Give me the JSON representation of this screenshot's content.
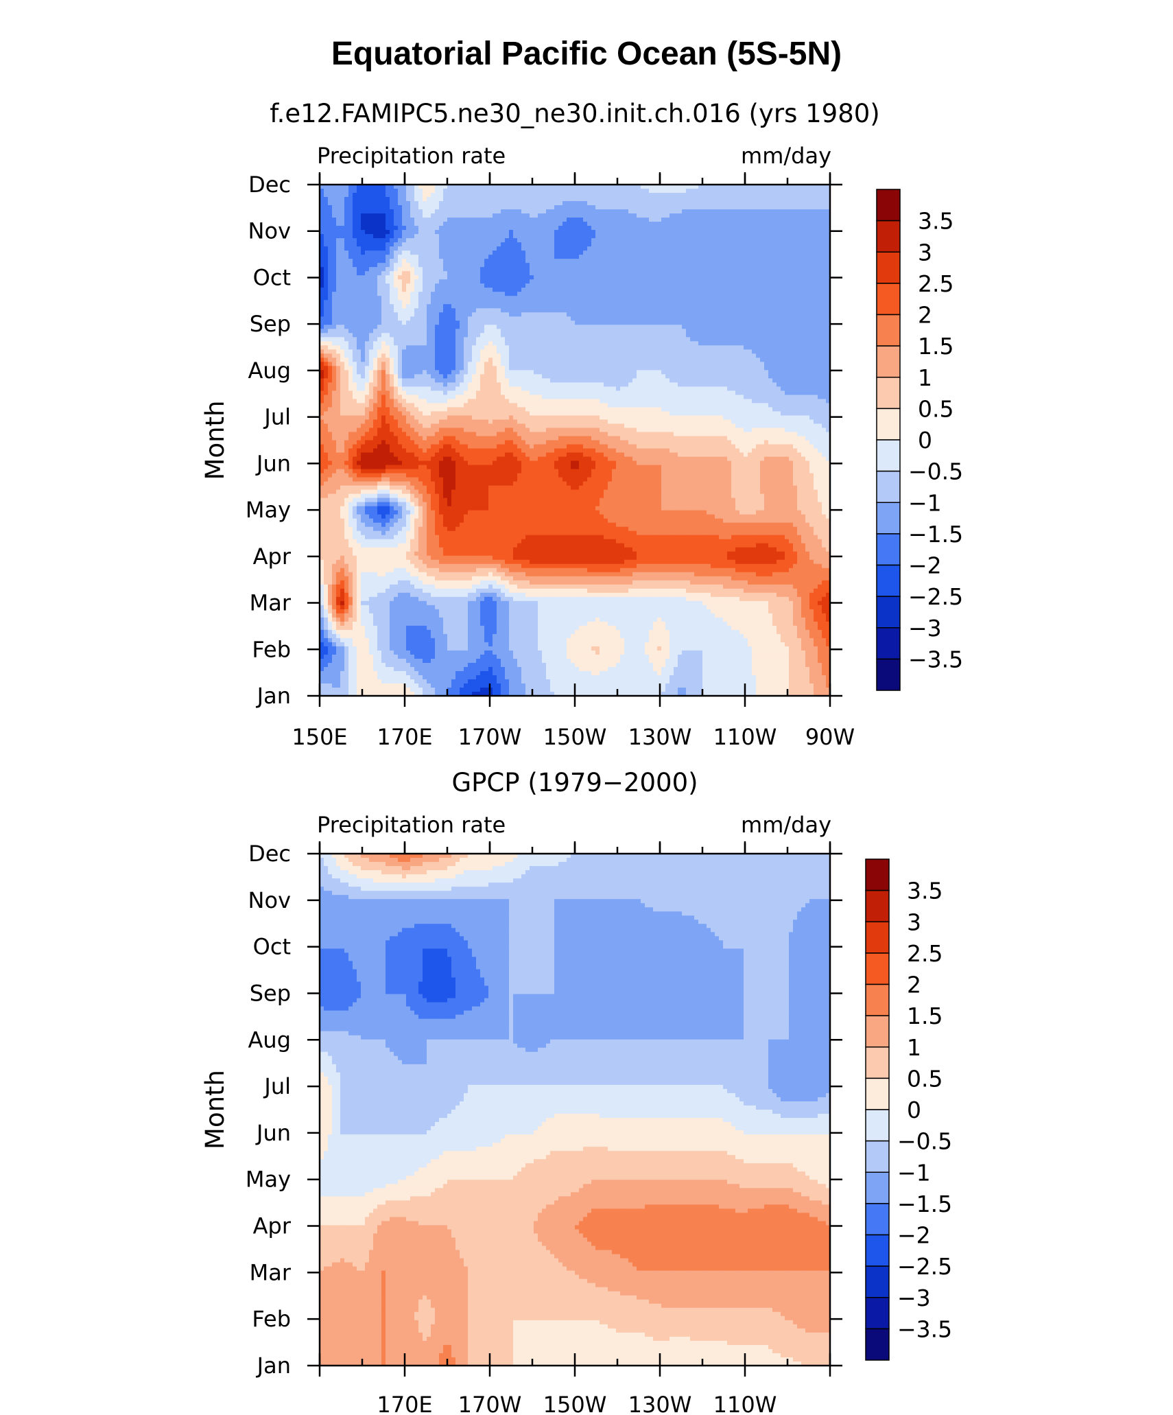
{
  "title": "Equatorial Pacific Ocean (5S-5N)",
  "colors": [
    "#0a0a7a",
    "#0a1aa6",
    "#0b33c8",
    "#1e55ea",
    "#4478f4",
    "#7ea4f6",
    "#b3caf8",
    "#dce9fb",
    "#fdebdc",
    "#fccaae",
    "#f9a783",
    "#f7814f",
    "#f45a22",
    "#e03a0d",
    "#c11f06",
    "#8a0505"
  ],
  "chart_data": [
    {
      "type": "heatmap",
      "title": "f.e12.FAMIPC5.ne30_ne30.init.ch.016 (yrs 1980)",
      "variable_label": "Precipitation rate",
      "units_label": "mm/day",
      "xlabel": "",
      "ylabel": "Month",
      "x_tick_labels": [
        "150E",
        "170E",
        "170W",
        "150W",
        "130W",
        "110W",
        "90W"
      ],
      "y_tick_labels": [
        "Jan",
        "Feb",
        "Mar",
        "Apr",
        "May",
        "Jun",
        "Jul",
        "Aug",
        "Sep",
        "Oct",
        "Nov",
        "Dec"
      ],
      "colorbar_labels": [
        "3.5",
        "3",
        "2.5",
        "2",
        "1.5",
        "1",
        "0.5",
        "0",
        "−0.5",
        "−1",
        "−1.5",
        "−2",
        "−2.5",
        "−3",
        "−3.5"
      ],
      "x": [
        150,
        155,
        160,
        165,
        170,
        175,
        180,
        185,
        190,
        195,
        200,
        205,
        210,
        215,
        220,
        225,
        230,
        235,
        240,
        245,
        250,
        255,
        260,
        265,
        270
      ],
      "y": [
        1,
        2,
        3,
        4,
        5,
        6,
        7,
        8,
        9,
        10,
        11,
        12
      ],
      "values": [
        [
          -0.5,
          -1.0,
          0.5,
          0.3,
          0.5,
          -0.5,
          -1.5,
          -2.5,
          -2.8,
          -1.5,
          -0.8,
          -0.5,
          -0.5,
          -0.5,
          -0.5,
          -0.5,
          -0.5,
          -1.2,
          -0.5,
          -0.3,
          -0.3,
          0.3,
          0.5,
          0.8,
          1.5
        ],
        [
          -2.5,
          -1.2,
          0.5,
          -0.8,
          -1.5,
          -2.0,
          -1.0,
          -1.0,
          -1.5,
          -1.0,
          -0.6,
          -0.3,
          0.3,
          0.6,
          0.2,
          -0.3,
          0.6,
          -0.5,
          -0.5,
          -0.3,
          -0.1,
          0.3,
          0.5,
          1.2,
          2.0
        ],
        [
          -0.8,
          3.3,
          -0.5,
          -0.8,
          -1.5,
          -1.0,
          -0.8,
          -1.0,
          -2.0,
          -0.8,
          -0.5,
          -0.5,
          -0.5,
          -0.3,
          -0.3,
          -0.3,
          -0.3,
          -0.3,
          0.0,
          0.2,
          0.3,
          0.5,
          0.8,
          2.0,
          3.0
        ],
        [
          0.5,
          1.0,
          0.3,
          0.5,
          0.5,
          1.5,
          2.0,
          2.0,
          2.0,
          2.5,
          3.0,
          3.0,
          3.0,
          3.0,
          3.0,
          2.5,
          2.5,
          2.5,
          2.5,
          2.5,
          3.0,
          3.0,
          2.5,
          1.5,
          1.0
        ],
        [
          0.5,
          0.5,
          -1.5,
          -2.5,
          -1.0,
          1.5,
          3.0,
          2.5,
          2.5,
          2.0,
          2.0,
          2.0,
          2.0,
          2.0,
          1.5,
          1.5,
          1.5,
          1.5,
          1.5,
          1.2,
          0.8,
          1.0,
          1.2,
          0.8,
          0.3
        ],
        [
          2.5,
          1.5,
          3.5,
          3.5,
          3.0,
          2.5,
          3.5,
          2.5,
          2.5,
          3.0,
          2.0,
          2.5,
          3.2,
          2.5,
          2.0,
          1.5,
          1.5,
          1.2,
          1.2,
          1.2,
          0.6,
          1.2,
          1.2,
          0.5,
          0.0
        ],
        [
          1.5,
          1.0,
          1.0,
          2.5,
          1.5,
          0.5,
          1.0,
          1.0,
          0.8,
          1.0,
          0.5,
          0.5,
          0.5,
          0.5,
          0.2,
          0.1,
          0.1,
          0.0,
          0.0,
          0.0,
          -0.3,
          -0.3,
          -0.5,
          -0.5,
          -0.8
        ],
        [
          3.5,
          1.0,
          -1.0,
          1.5,
          -1.5,
          -1.0,
          -2.0,
          -0.5,
          1.0,
          -0.5,
          -0.5,
          -0.8,
          -0.8,
          -0.8,
          -1.0,
          -0.5,
          -0.5,
          -0.8,
          -0.8,
          -0.8,
          -0.8,
          -1.0,
          -1.5,
          -1.5,
          -1.5
        ],
        [
          -2.0,
          -1.0,
          -1.5,
          -1.0,
          -0.5,
          -1.0,
          -2.0,
          -1.0,
          -0.5,
          -0.8,
          -0.8,
          -0.8,
          -1.0,
          -1.0,
          -1.0,
          -1.0,
          -1.0,
          -1.0,
          -1.2,
          -1.2,
          -1.2,
          -1.2,
          -1.5,
          -1.5,
          -1.5
        ],
        [
          -2.8,
          -1.0,
          -1.5,
          -0.8,
          1.0,
          -0.8,
          -1.0,
          -1.2,
          -1.8,
          -2.0,
          -1.5,
          -1.5,
          -1.2,
          -1.2,
          -1.2,
          -1.2,
          -1.2,
          -1.2,
          -1.2,
          -1.2,
          -1.5,
          -1.5,
          -1.5,
          -1.5,
          -1.5
        ],
        [
          -2.0,
          -1.5,
          -2.5,
          -2.8,
          -1.5,
          -0.8,
          -1.2,
          -1.2,
          -1.2,
          -1.5,
          -1.2,
          -1.5,
          -2.0,
          -1.5,
          -1.5,
          -1.2,
          -1.2,
          -1.5,
          -1.5,
          -1.5,
          -1.5,
          -1.5,
          -1.5,
          -1.5,
          -1.5
        ],
        [
          -1.5,
          -1.0,
          -2.5,
          -2.0,
          -1.0,
          0.5,
          -0.5,
          -0.5,
          -0.5,
          -0.5,
          -0.5,
          -0.5,
          -0.5,
          -0.5,
          -0.5,
          -0.5,
          -0.3,
          -0.3,
          -0.5,
          -0.5,
          -0.5,
          -0.5,
          -0.5,
          -0.5,
          -0.5
        ]
      ]
    },
    {
      "type": "heatmap",
      "title": "GPCP (1979−2000)",
      "variable_label": "Precipitation rate",
      "units_label": "mm/day",
      "xlabel": "",
      "ylabel": "Month",
      "x_tick_labels": [
        "170E",
        "170W",
        "150W",
        "130W",
        "110W"
      ],
      "y_tick_labels": [
        "Jan",
        "Feb",
        "Mar",
        "Apr",
        "May",
        "Jun",
        "Jul",
        "Aug",
        "Sep",
        "Oct",
        "Nov",
        "Dec"
      ],
      "colorbar_labels": [
        "3.5",
        "3",
        "2.5",
        "2",
        "1.5",
        "1",
        "0.5",
        "0",
        "−0.5",
        "−1",
        "−1.5",
        "−2",
        "−2.5",
        "−3",
        "−3.5"
      ],
      "x": [
        150,
        155,
        160,
        165,
        170,
        175,
        180,
        185,
        190,
        195,
        200,
        205,
        210,
        215,
        220,
        225,
        230,
        235,
        240,
        245,
        250,
        255,
        260,
        265,
        270
      ],
      "y": [
        1,
        2,
        3,
        4,
        5,
        6,
        7,
        8,
        9,
        10,
        11,
        12
      ],
      "values": [
        [
          1.2,
          1.5,
          1.5,
          1.5,
          1.5,
          1.2,
          1.8,
          1.0,
          0.5,
          0.5,
          0.3,
          0.2,
          0.2,
          0.2,
          0.2,
          0.2,
          0.2,
          0.0,
          0.2,
          0.2,
          0.3,
          0.3,
          0.4,
          0.5,
          0.5
        ],
        [
          1.2,
          1.5,
          1.2,
          1.5,
          1.2,
          0.8,
          1.2,
          1.0,
          0.5,
          0.5,
          0.5,
          0.5,
          0.5,
          0.5,
          0.6,
          0.6,
          0.8,
          0.8,
          0.8,
          0.8,
          0.8,
          0.8,
          1.0,
          1.2,
          1.2
        ],
        [
          1.0,
          1.2,
          1.0,
          1.5,
          1.0,
          1.2,
          1.2,
          1.0,
          0.5,
          0.8,
          0.8,
          0.9,
          1.0,
          1.2,
          1.3,
          1.5,
          1.5,
          1.5,
          1.5,
          1.5,
          1.5,
          1.5,
          1.5,
          1.5,
          1.5
        ],
        [
          0.5,
          0.5,
          0.5,
          1.2,
          1.2,
          1.0,
          1.0,
          0.8,
          0.8,
          1.0,
          1.0,
          1.2,
          1.5,
          1.8,
          1.8,
          1.8,
          2.0,
          2.0,
          2.0,
          1.8,
          1.8,
          2.0,
          2.0,
          1.8,
          1.5
        ],
        [
          -0.3,
          -0.3,
          -0.3,
          -0.2,
          0.0,
          0.2,
          0.5,
          0.5,
          0.5,
          0.5,
          0.8,
          0.8,
          0.8,
          1.0,
          1.0,
          1.0,
          1.0,
          1.0,
          1.0,
          1.0,
          0.8,
          0.8,
          0.8,
          0.5,
          0.3
        ],
        [
          0.5,
          -0.5,
          -0.5,
          -0.5,
          -0.5,
          -0.5,
          -0.3,
          -0.3,
          -0.2,
          0.0,
          0.0,
          0.3,
          0.3,
          0.3,
          0.2,
          0.2,
          0.2,
          0.2,
          0.2,
          0.2,
          0.0,
          0.0,
          0.0,
          0.0,
          0.0
        ],
        [
          0.5,
          -0.5,
          -0.8,
          -0.8,
          -0.8,
          -1.0,
          -0.8,
          -0.5,
          -0.5,
          -0.5,
          -0.5,
          -0.5,
          -0.5,
          -0.5,
          -0.5,
          -0.5,
          -0.5,
          -0.5,
          -0.5,
          -0.5,
          -0.8,
          -1.0,
          -1.5,
          -1.5,
          -1.2
        ],
        [
          -0.8,
          -0.8,
          -1.0,
          -1.0,
          -1.2,
          -1.0,
          -1.0,
          -1.0,
          -1.0,
          -1.0,
          -1.2,
          -1.0,
          -1.0,
          -1.0,
          -1.0,
          -1.0,
          -1.0,
          -1.0,
          -1.0,
          -1.0,
          -1.0,
          -1.0,
          -1.0,
          -1.2,
          -1.2
        ],
        [
          -1.8,
          -2.0,
          -1.5,
          -1.5,
          -1.5,
          -2.2,
          -2.2,
          -1.8,
          -1.5,
          -1.0,
          -1.0,
          -1.0,
          -1.5,
          -1.5,
          -1.5,
          -1.5,
          -1.5,
          -1.5,
          -1.5,
          -1.5,
          -1.0,
          -1.0,
          -1.0,
          -1.2,
          -1.2
        ],
        [
          -1.5,
          -1.5,
          -1.2,
          -1.5,
          -1.8,
          -2.0,
          -2.0,
          -1.5,
          -1.2,
          -1.0,
          -1.0,
          -1.0,
          -1.2,
          -1.5,
          -1.5,
          -1.5,
          -1.5,
          -1.5,
          -1.2,
          -1.0,
          -1.0,
          -1.0,
          -1.0,
          -1.5,
          -1.5
        ],
        [
          -1.2,
          -1.2,
          -1.0,
          -1.0,
          -1.0,
          -1.0,
          -1.0,
          -1.0,
          -1.0,
          -1.0,
          -1.0,
          -1.0,
          -1.0,
          -1.0,
          -1.0,
          -1.0,
          -0.8,
          -0.8,
          -0.8,
          -0.8,
          -0.8,
          -0.8,
          -0.8,
          -1.0,
          -1.0
        ],
        [
          -0.5,
          0.5,
          1.2,
          1.5,
          2.0,
          1.5,
          1.2,
          0.5,
          0.5,
          0.2,
          -0.3,
          -0.3,
          -0.5,
          -0.5,
          -0.5,
          -0.5,
          -0.5,
          -0.5,
          -0.5,
          -0.5,
          -0.5,
          -0.5,
          -0.5,
          -0.5,
          -0.5
        ]
      ]
    }
  ]
}
